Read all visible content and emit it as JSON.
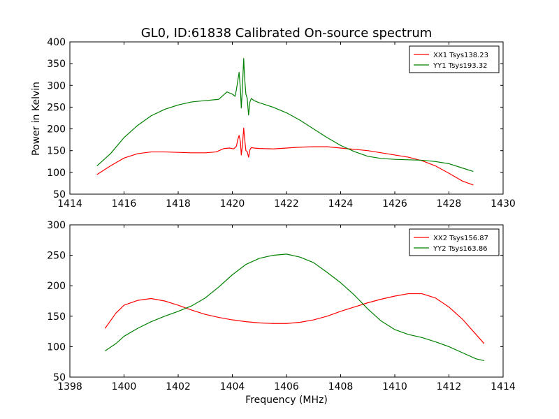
{
  "figure": {
    "title": "GL0, ID:61838 Calibrated On-source spectrum",
    "shared_xlabel": "Frequency (MHz)"
  },
  "chart_data": [
    {
      "type": "line",
      "title": "GL0, ID:61838 Calibrated On-source spectrum",
      "xlabel": "",
      "ylabel": "Power in Kelvin",
      "xlim": [
        1414,
        1430
      ],
      "ylim": [
        50,
        400
      ],
      "xticks": [
        1414,
        1416,
        1418,
        1420,
        1422,
        1424,
        1426,
        1428,
        1430
      ],
      "yticks": [
        50,
        100,
        150,
        200,
        250,
        300,
        350,
        400
      ],
      "legend_position": "top-right",
      "grid": false,
      "series": [
        {
          "name": "XX1 Tsys138.23",
          "color": "#ff0000",
          "x": [
            1415.0,
            1415.5,
            1416.0,
            1416.5,
            1417.0,
            1417.5,
            1418.0,
            1418.5,
            1419.0,
            1419.4,
            1419.7,
            1419.9,
            1420.05,
            1420.15,
            1420.2,
            1420.25,
            1420.3,
            1420.33,
            1420.37,
            1420.42,
            1420.45,
            1420.5,
            1420.55,
            1420.6,
            1420.65,
            1420.7,
            1420.8,
            1421.0,
            1421.5,
            1422.0,
            1422.5,
            1423.0,
            1423.5,
            1424.0,
            1424.5,
            1425.0,
            1425.5,
            1426.0,
            1426.5,
            1427.0,
            1427.5,
            1428.0,
            1428.5,
            1428.9
          ],
          "y": [
            95,
            115,
            133,
            143,
            147,
            147,
            146,
            145,
            145,
            147,
            155,
            156,
            154,
            160,
            175,
            185,
            170,
            140,
            160,
            202,
            180,
            150,
            148,
            135,
            152,
            157,
            156,
            155,
            154,
            156,
            158,
            159,
            159,
            156,
            153,
            150,
            145,
            140,
            135,
            127,
            115,
            98,
            80,
            71
          ]
        },
        {
          "name": "YY1 Tsys193.32",
          "color": "#008000",
          "x": [
            1415.0,
            1415.5,
            1416.0,
            1416.5,
            1417.0,
            1417.5,
            1418.0,
            1418.5,
            1419.0,
            1419.5,
            1419.8,
            1420.0,
            1420.1,
            1420.15,
            1420.2,
            1420.25,
            1420.3,
            1420.33,
            1420.36,
            1420.42,
            1420.45,
            1420.5,
            1420.55,
            1420.6,
            1420.65,
            1420.7,
            1420.8,
            1421.0,
            1421.5,
            1422.0,
            1422.5,
            1423.0,
            1423.5,
            1424.0,
            1424.5,
            1425.0,
            1425.5,
            1426.0,
            1426.5,
            1427.0,
            1427.5,
            1428.0,
            1428.5,
            1428.9
          ],
          "y": [
            115,
            143,
            180,
            208,
            230,
            245,
            255,
            262,
            265,
            268,
            285,
            280,
            275,
            290,
            310,
            330,
            290,
            248,
            280,
            362,
            320,
            280,
            270,
            232,
            262,
            270,
            265,
            260,
            250,
            237,
            220,
            200,
            180,
            162,
            148,
            137,
            132,
            130,
            129,
            128,
            125,
            120,
            110,
            102
          ]
        }
      ]
    },
    {
      "type": "line",
      "title": "",
      "xlabel": "Frequency (MHz)",
      "ylabel": "",
      "xlim": [
        1398,
        1414
      ],
      "ylim": [
        50,
        300
      ],
      "xticks": [
        1398,
        1400,
        1402,
        1404,
        1406,
        1408,
        1410,
        1412,
        1414
      ],
      "yticks": [
        50,
        100,
        150,
        200,
        250,
        300
      ],
      "legend_position": "top-right",
      "grid": false,
      "series": [
        {
          "name": "XX2 Tsys156.87",
          "color": "#ff0000",
          "x": [
            1399.3,
            1399.7,
            1400.0,
            1400.5,
            1401.0,
            1401.5,
            1402.0,
            1402.5,
            1403.0,
            1403.5,
            1404.0,
            1404.5,
            1405.0,
            1405.5,
            1406.0,
            1406.5,
            1407.0,
            1407.5,
            1408.0,
            1408.5,
            1409.0,
            1409.5,
            1410.0,
            1410.5,
            1411.0,
            1411.5,
            1412.0,
            1412.5,
            1413.0,
            1413.3
          ],
          "y": [
            130,
            155,
            168,
            176,
            179,
            175,
            168,
            160,
            153,
            148,
            144,
            141,
            139,
            138,
            138,
            140,
            144,
            150,
            158,
            165,
            172,
            178,
            183,
            187,
            187,
            180,
            165,
            145,
            120,
            105
          ]
        },
        {
          "name": "YY2 Tsys163.86",
          "color": "#008000",
          "x": [
            1399.3,
            1399.7,
            1400.0,
            1400.5,
            1401.0,
            1401.5,
            1402.0,
            1402.5,
            1403.0,
            1403.5,
            1404.0,
            1404.5,
            1405.0,
            1405.5,
            1406.0,
            1406.5,
            1407.0,
            1407.5,
            1408.0,
            1408.5,
            1409.0,
            1409.5,
            1410.0,
            1410.5,
            1411.0,
            1411.5,
            1412.0,
            1412.5,
            1413.0,
            1413.3
          ],
          "y": [
            93,
            105,
            117,
            130,
            141,
            150,
            158,
            167,
            180,
            198,
            218,
            235,
            245,
            250,
            252,
            247,
            238,
            222,
            205,
            185,
            162,
            142,
            128,
            120,
            115,
            108,
            100,
            90,
            80,
            77
          ]
        }
      ]
    }
  ]
}
